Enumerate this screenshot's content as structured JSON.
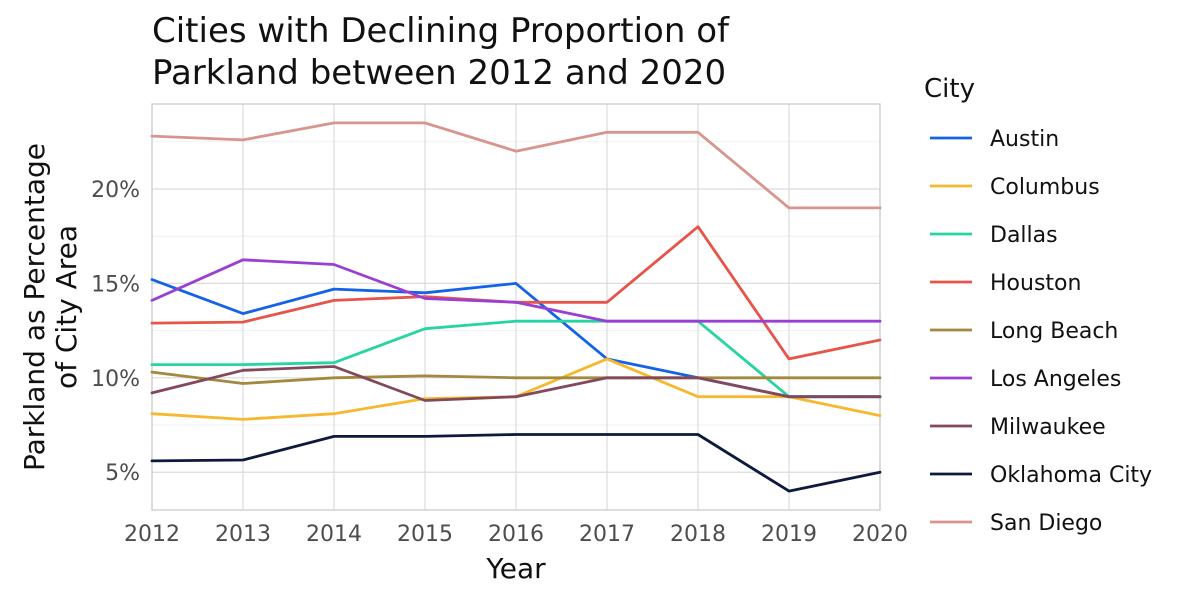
{
  "chart_data": {
    "type": "line",
    "title_lines": [
      "Cities with Declining Proportion of",
      "Parkland between 2012 and 2020"
    ],
    "xlabel": "Year",
    "ylabel_lines": [
      "Parkland as Percentage",
      "of City Area"
    ],
    "legend_title": "City",
    "legend_position": "right",
    "grid": true,
    "x": [
      2012,
      2013,
      2014,
      2015,
      2016,
      2017,
      2018,
      2019,
      2020
    ],
    "x_tick_labels": [
      "2012",
      "2013",
      "2014",
      "2015",
      "2016",
      "2017",
      "2018",
      "2019",
      "2020"
    ],
    "y_ticks": [
      5,
      10,
      15,
      20
    ],
    "y_tick_labels": [
      "5%",
      "10%",
      "15%",
      "20%"
    ],
    "xlim": [
      2012,
      2020
    ],
    "ylim": [
      3,
      24.5
    ],
    "series": [
      {
        "name": "Austin",
        "color": "#1463e6",
        "values": [
          15.2,
          13.4,
          14.7,
          14.5,
          15.0,
          11.0,
          10.0,
          9.0,
          9.0
        ]
      },
      {
        "name": "Columbus",
        "color": "#f5b82e",
        "values": [
          8.1,
          7.8,
          8.1,
          8.9,
          9.0,
          11.0,
          9.0,
          9.0,
          8.0
        ]
      },
      {
        "name": "Dallas",
        "color": "#27d4a2",
        "values": [
          10.7,
          10.7,
          10.8,
          12.6,
          13.0,
          13.0,
          13.0,
          9.0,
          9.0
        ]
      },
      {
        "name": "Houston",
        "color": "#e6544a",
        "values": [
          12.9,
          12.95,
          14.1,
          14.3,
          14.0,
          14.0,
          18.0,
          11.0,
          12.0
        ]
      },
      {
        "name": "Long Beach",
        "color": "#a3893f",
        "values": [
          10.3,
          9.7,
          10.0,
          10.1,
          10.0,
          10.0,
          10.0,
          10.0,
          10.0
        ]
      },
      {
        "name": "Los Angeles",
        "color": "#9b3ed3",
        "values": [
          14.1,
          16.25,
          16.0,
          14.2,
          14.0,
          13.0,
          13.0,
          13.0,
          13.0
        ]
      },
      {
        "name": "Milwaukee",
        "color": "#83485a",
        "values": [
          9.2,
          10.4,
          10.6,
          8.8,
          9.0,
          10.0,
          10.0,
          9.0,
          9.0
        ]
      },
      {
        "name": "Oklahoma City",
        "color": "#0d1a3d",
        "values": [
          5.6,
          5.65,
          6.9,
          6.9,
          7.0,
          7.0,
          7.0,
          4.0,
          5.0
        ]
      },
      {
        "name": "San Diego",
        "color": "#d8958d",
        "values": [
          22.8,
          22.6,
          23.5,
          23.5,
          22.0,
          23.0,
          23.0,
          19.0,
          19.0
        ]
      }
    ]
  }
}
